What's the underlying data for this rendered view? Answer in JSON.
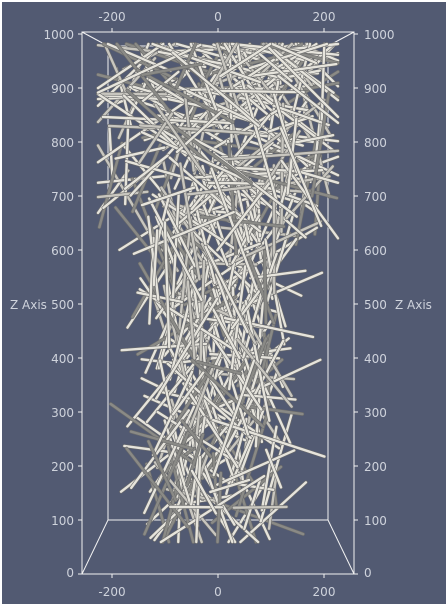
{
  "viewer": {
    "background": "#525a72",
    "rod_color": "#e6e4dc",
    "rod_shadow": "#6b6b6b",
    "box_color": "#f2f2f2"
  },
  "axes": {
    "z_title_left": "Z Axis",
    "z_title_right": "Z Axis",
    "x_ticks_top": [
      "-200",
      "0",
      "200"
    ],
    "x_ticks_bottom": [
      "-200",
      "0",
      "200"
    ],
    "z_ticks_left": [
      "1000",
      "900",
      "800",
      "700",
      "600",
      "500",
      "400",
      "300",
      "200",
      "100",
      "0"
    ],
    "z_ticks_right": [
      "1000",
      "900",
      "800",
      "700",
      "600",
      "500",
      "400",
      "300",
      "200",
      "100",
      "0"
    ]
  }
}
